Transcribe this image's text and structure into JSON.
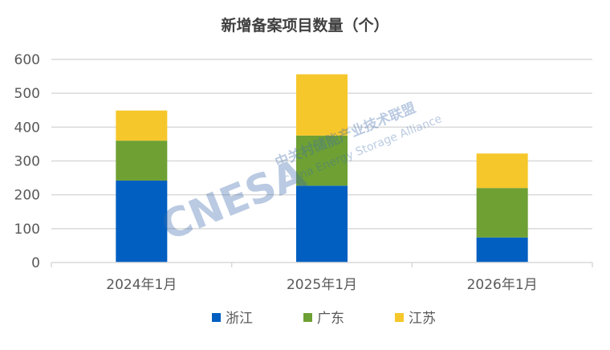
{
  "chart_data": {
    "type": "bar",
    "stacked": true,
    "title": "新增备案项目数量（个）",
    "xlabel": "",
    "ylabel": "",
    "categories": [
      "2024年1月",
      "2025年1月",
      "2026年1月"
    ],
    "series": [
      {
        "name": "浙江",
        "color": "#005FC1",
        "values": [
          242,
          227,
          74
        ]
      },
      {
        "name": "广东",
        "color": "#6EA033",
        "values": [
          118,
          148,
          146
        ]
      },
      {
        "name": "江苏",
        "color": "#F5C72B",
        "values": [
          89,
          181,
          102
        ]
      }
    ],
    "ylim": [
      0,
      600
    ],
    "yticks": [
      0,
      100,
      200,
      300,
      400,
      500,
      600
    ],
    "grid": true,
    "legend_position": "bottom"
  },
  "watermark": {
    "logo": "CNESA",
    "cn": "中关村储能产业技术联盟",
    "en": "China Energy Storage Alliance"
  }
}
